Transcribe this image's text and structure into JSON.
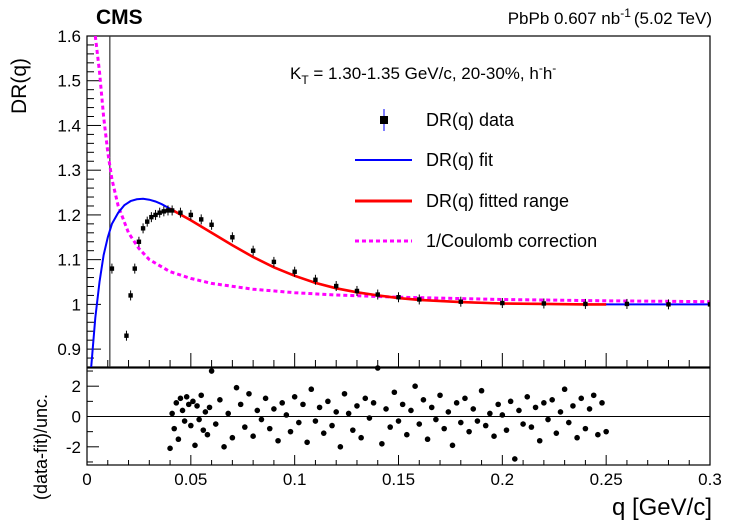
{
  "header": {
    "experiment": "CMS",
    "dataset": "PbPb 0.607 nb",
    "dataset_sup": "-1",
    "energy": "(5.02 TeV)"
  },
  "annotation": {
    "kt_prefix": "K",
    "kt_sub": "T",
    "kt_text": " = 1.30-1.35 GeV/c, 20-30%, h",
    "kt_sup1": "-",
    "kt_h2": "h",
    "kt_sup2": "-"
  },
  "colors": {
    "data": "#000000",
    "fit": "#0000ff",
    "fitted_range": "#ff0000",
    "coulomb": "#ff00ff",
    "frame": "#000000"
  },
  "chart_data": [
    {
      "type": "line",
      "panel": "upper",
      "xlim": [
        0,
        0.3
      ],
      "ylim": [
        0.86,
        1.6
      ],
      "ylabel": "DR(q)",
      "y_ticks": [
        "0.9",
        "1",
        "1.1",
        "1.2",
        "1.3",
        "1.4",
        "1.5",
        "1.6"
      ],
      "legend_position": "top-right",
      "legend": [
        {
          "label": "DR(q) data",
          "style": "marker"
        },
        {
          "label": "DR(q) fit",
          "style": "line",
          "color": "#0000ff"
        },
        {
          "label": "DR(q) fitted range",
          "style": "line",
          "color": "#ff0000"
        },
        {
          "label": "1/Coulomb correction",
          "style": "dashed",
          "color": "#ff00ff"
        }
      ],
      "vertical_line_x": 0.011,
      "series": [
        {
          "name": "DR(q) data",
          "kind": "points",
          "x": [
            0.012,
            0.019,
            0.021,
            0.023,
            0.025,
            0.027,
            0.029,
            0.031,
            0.033,
            0.035,
            0.037,
            0.039,
            0.041,
            0.045,
            0.05,
            0.055,
            0.06,
            0.07,
            0.08,
            0.09,
            0.1,
            0.11,
            0.12,
            0.13,
            0.14,
            0.15,
            0.16,
            0.18,
            0.2,
            0.22,
            0.24,
            0.26,
            0.28,
            0.3
          ],
          "y": [
            1.08,
            0.93,
            1.02,
            1.08,
            1.14,
            1.17,
            1.185,
            1.195,
            1.2,
            1.205,
            1.208,
            1.21,
            1.21,
            1.205,
            1.2,
            1.19,
            1.178,
            1.15,
            1.12,
            1.095,
            1.073,
            1.055,
            1.041,
            1.03,
            1.022,
            1.016,
            1.011,
            1.006,
            1.003,
            1.002,
            1.001,
            1.001,
            1.0,
            1.0
          ]
        },
        {
          "name": "DR(q) fit",
          "kind": "line",
          "x": [
            0.002,
            0.004,
            0.006,
            0.008,
            0.01,
            0.012,
            0.015,
            0.018,
            0.021,
            0.024,
            0.027,
            0.03,
            0.033,
            0.036,
            0.04,
            0.045,
            0.05,
            0.06,
            0.07,
            0.08,
            0.09,
            0.1,
            0.11,
            0.12,
            0.13,
            0.14,
            0.15,
            0.16,
            0.18,
            0.2,
            0.22,
            0.24,
            0.26,
            0.28,
            0.3
          ],
          "y": [
            0.86,
            0.97,
            1.05,
            1.11,
            1.15,
            1.18,
            1.205,
            1.222,
            1.231,
            1.235,
            1.236,
            1.234,
            1.23,
            1.224,
            1.214,
            1.201,
            1.188,
            1.16,
            1.132,
            1.106,
            1.083,
            1.064,
            1.048,
            1.036,
            1.027,
            1.02,
            1.014,
            1.01,
            1.005,
            1.002,
            1.001,
            1.0,
            1.0,
            1.0,
            1.0
          ]
        },
        {
          "name": "DR(q) fitted range",
          "kind": "line",
          "x": [
            0.04,
            0.045,
            0.05,
            0.06,
            0.07,
            0.08,
            0.09,
            0.1,
            0.11,
            0.12,
            0.13,
            0.14,
            0.15,
            0.16,
            0.18,
            0.2,
            0.22,
            0.24,
            0.25
          ],
          "y": [
            1.214,
            1.201,
            1.188,
            1.16,
            1.132,
            1.106,
            1.083,
            1.064,
            1.048,
            1.036,
            1.027,
            1.02,
            1.014,
            1.01,
            1.005,
            1.002,
            1.001,
            1.0,
            1.0
          ]
        },
        {
          "name": "1/Coulomb correction",
          "kind": "dashed",
          "x": [
            0.004,
            0.006,
            0.008,
            0.01,
            0.012,
            0.015,
            0.02,
            0.025,
            0.03,
            0.04,
            0.05,
            0.06,
            0.08,
            0.1,
            0.12,
            0.15,
            0.2,
            0.25,
            0.3
          ],
          "y": [
            1.6,
            1.52,
            1.42,
            1.34,
            1.28,
            1.22,
            1.16,
            1.125,
            1.1,
            1.073,
            1.058,
            1.047,
            1.034,
            1.026,
            1.021,
            1.016,
            1.011,
            1.008,
            1.006
          ]
        }
      ]
    },
    {
      "type": "scatter",
      "panel": "lower",
      "xlim": [
        0,
        0.3
      ],
      "ylim": [
        -3.2,
        3.2
      ],
      "xlabel": "q [GeV/c]",
      "ylabel": "(data-fit)/unc.",
      "x_ticks": [
        "0",
        "0.05",
        "0.1",
        "0.15",
        "0.2",
        "0.25",
        "0.3"
      ],
      "y_ticks": [
        "-2",
        "0",
        "2"
      ],
      "series": [
        {
          "name": "residuals",
          "x": [
            0.04,
            0.041,
            0.042,
            0.043,
            0.044,
            0.045,
            0.046,
            0.047,
            0.048,
            0.049,
            0.05,
            0.051,
            0.052,
            0.053,
            0.054,
            0.055,
            0.056,
            0.057,
            0.058,
            0.059,
            0.06,
            0.062,
            0.064,
            0.066,
            0.068,
            0.07,
            0.072,
            0.074,
            0.076,
            0.078,
            0.08,
            0.082,
            0.084,
            0.086,
            0.088,
            0.09,
            0.092,
            0.094,
            0.096,
            0.098,
            0.1,
            0.102,
            0.104,
            0.106,
            0.108,
            0.11,
            0.112,
            0.114,
            0.116,
            0.118,
            0.12,
            0.122,
            0.124,
            0.126,
            0.128,
            0.13,
            0.132,
            0.134,
            0.136,
            0.138,
            0.14,
            0.142,
            0.144,
            0.146,
            0.148,
            0.15,
            0.152,
            0.154,
            0.156,
            0.158,
            0.16,
            0.162,
            0.164,
            0.166,
            0.168,
            0.17,
            0.172,
            0.174,
            0.176,
            0.178,
            0.18,
            0.182,
            0.184,
            0.186,
            0.188,
            0.19,
            0.192,
            0.194,
            0.196,
            0.198,
            0.2,
            0.202,
            0.204,
            0.206,
            0.208,
            0.21,
            0.212,
            0.214,
            0.216,
            0.218,
            0.22,
            0.222,
            0.224,
            0.226,
            0.228,
            0.23,
            0.232,
            0.234,
            0.236,
            0.238,
            0.24,
            0.242,
            0.244,
            0.246,
            0.248,
            0.25
          ],
          "y": [
            -2.1,
            0.2,
            -0.8,
            0.9,
            -1.5,
            1.2,
            0.4,
            -0.3,
            1.3,
            0.8,
            -0.6,
            1.0,
            -1.9,
            0.7,
            -0.2,
            1.4,
            -0.9,
            0.3,
            -1.2,
            0.6,
            3.0,
            -0.5,
            1.1,
            -2.0,
            0.2,
            -1.4,
            1.9,
            0.8,
            -0.7,
            1.5,
            -1.3,
            0.4,
            -0.2,
            1.2,
            -0.8,
            0.5,
            -1.6,
            0.9,
            0.1,
            -1.0,
            1.3,
            -0.4,
            0.8,
            -1.7,
            1.8,
            -0.3,
            0.6,
            -1.1,
            1.0,
            -0.6,
            0.3,
            -2.0,
            1.5,
            0.2,
            -0.9,
            0.7,
            -1.4,
            1.2,
            -0.1,
            0.9,
            3.2,
            -1.8,
            0.5,
            -0.7,
            1.6,
            -0.3,
            0.8,
            -1.2,
            0.4,
            2.0,
            -0.5,
            1.1,
            -1.5,
            0.6,
            -0.2,
            1.4,
            -0.8,
            0.3,
            -1.9,
            0.9,
            -0.4,
            1.2,
            -1.0,
            0.5,
            -0.3,
            1.7,
            -0.6,
            0.2,
            -1.3,
            0.8,
            0.1,
            -0.9,
            1.0,
            -2.8,
            0.4,
            -0.5,
            1.3,
            -0.7,
            0.6,
            -1.6,
            0.9,
            -0.2,
            1.1,
            -1.1,
            0.3,
            1.8,
            -0.4,
            0.7,
            -1.4,
            1.2,
            -0.8,
            0.5,
            1.4,
            -1.2,
            0.9,
            -1.0
          ]
        }
      ]
    }
  ]
}
